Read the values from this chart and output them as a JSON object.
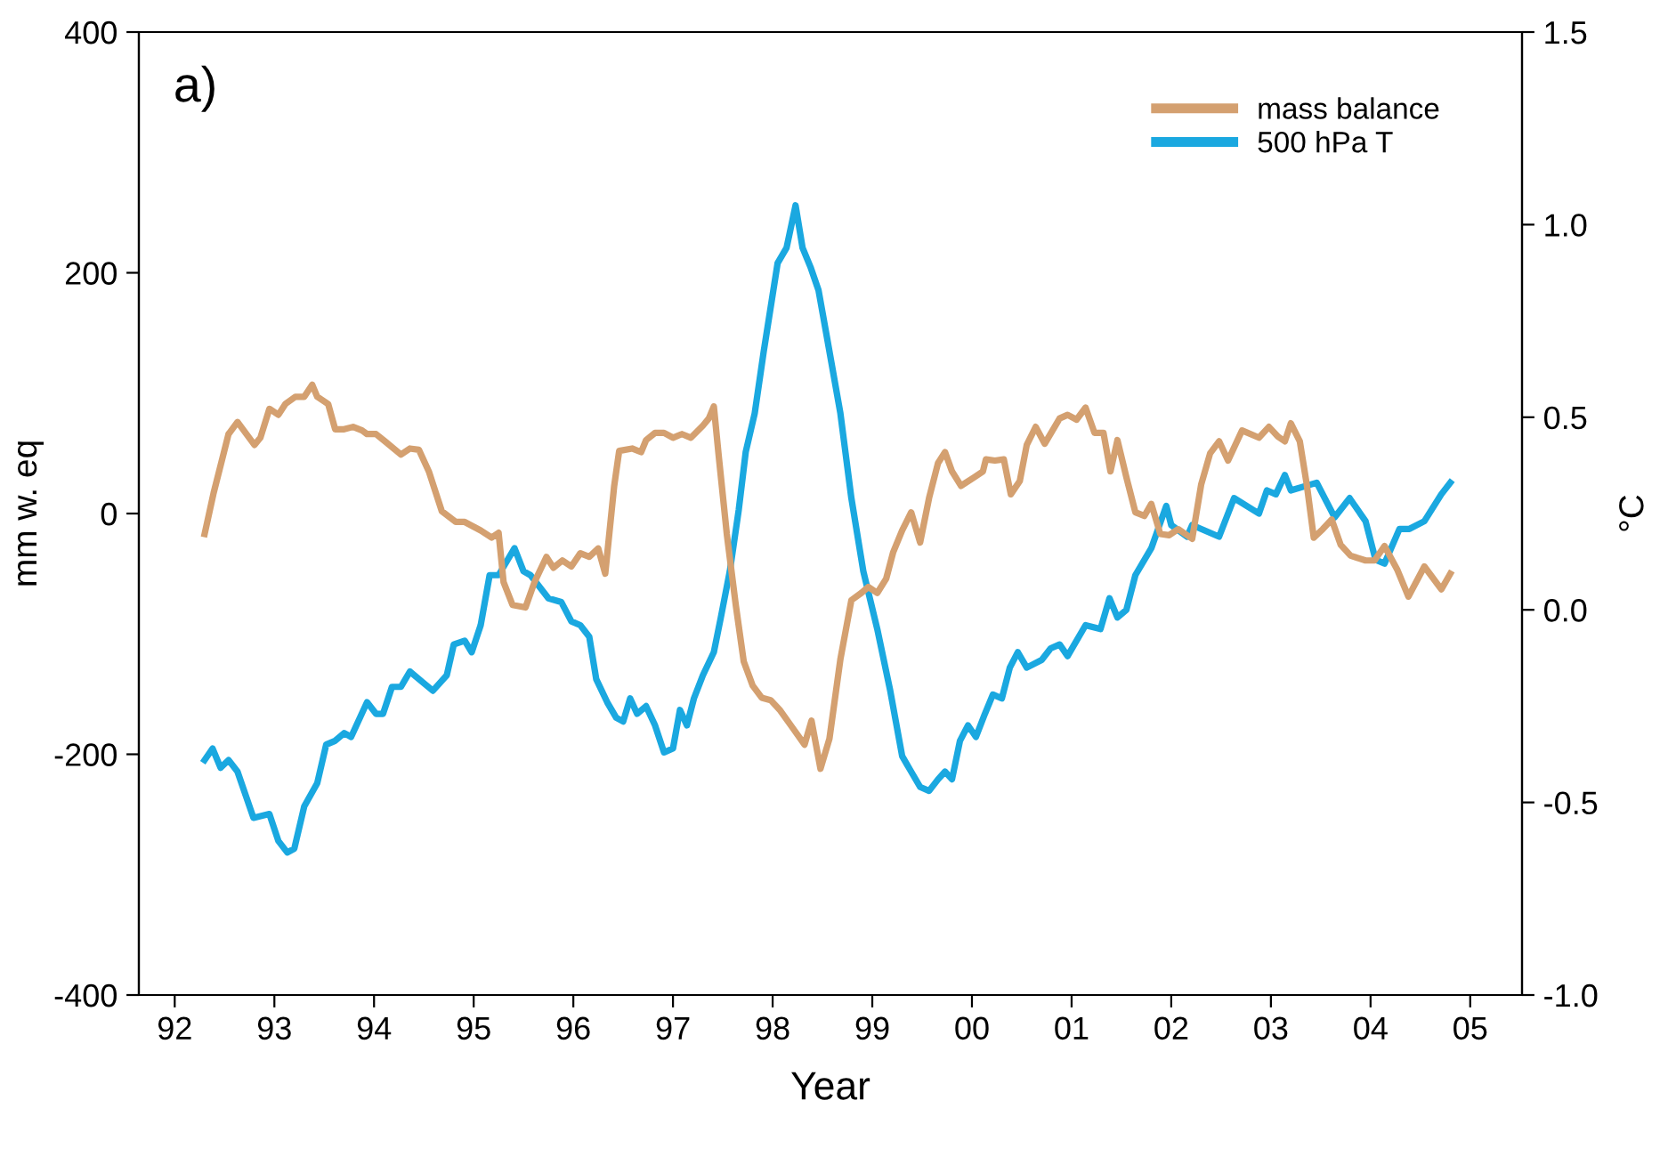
{
  "chart_data": {
    "type": "line",
    "xlabel": "Year",
    "ylabel": "mm w. eq",
    "y2label": "°C",
    "annotations": [
      "a)"
    ],
    "xlim": [
      1991.64,
      2005.52
    ],
    "xticks": [
      {
        "value": 1992,
        "label": "92"
      },
      {
        "value": 1993,
        "label": "93"
      },
      {
        "value": 1994,
        "label": "94"
      },
      {
        "value": 1995,
        "label": "95"
      },
      {
        "value": 1996,
        "label": "96"
      },
      {
        "value": 1997,
        "label": "97"
      },
      {
        "value": 1998,
        "label": "98"
      },
      {
        "value": 1999,
        "label": "99"
      },
      {
        "value": 2000,
        "label": "00"
      },
      {
        "value": 2001,
        "label": "01"
      },
      {
        "value": 2002,
        "label": "02"
      },
      {
        "value": 2003,
        "label": "03"
      },
      {
        "value": 2004,
        "label": "04"
      },
      {
        "value": 2005,
        "label": "05"
      }
    ],
    "ylim": [
      -400,
      400
    ],
    "yticks": [
      -400,
      -200,
      0,
      200,
      400
    ],
    "y2lim": [
      -1.0,
      1.5
    ],
    "y2ticks": [
      {
        "value": -1.0,
        "label": "-1.0"
      },
      {
        "value": -0.5,
        "label": "-0.5"
      },
      {
        "value": 0.0,
        "label": "0.0"
      },
      {
        "value": 0.5,
        "label": "0.5"
      },
      {
        "value": 1.0,
        "label": "1.0"
      },
      {
        "value": 1.5,
        "label": "1.5"
      }
    ],
    "grid": false,
    "legend": "top right",
    "marker": "none",
    "line_style": "solid",
    "series": [
      {
        "name": "mass balance",
        "color": "#d4a070",
        "x": [
          1992.3,
          1992.39,
          1992.54,
          1992.63,
          1992.8,
          1992.86,
          1992.95,
          1993.04,
          1993.11,
          1993.21,
          1993.3,
          1993.38,
          1993.43,
          1993.54,
          1993.61,
          1993.7,
          1993.79,
          1993.88,
          1993.93,
          1994.02,
          1994.11,
          1994.27,
          1994.36,
          1994.45,
          1994.55,
          1994.68,
          1994.82,
          1994.91,
          1995.07,
          1995.18,
          1995.25,
          1995.3,
          1995.39,
          1995.52,
          1995.61,
          1995.73,
          1995.8,
          1995.89,
          1995.98,
          1996.07,
          1996.16,
          1996.25,
          1996.32,
          1996.41,
          1996.46,
          1996.59,
          1996.68,
          1996.73,
          1996.82,
          1996.91,
          1997.0,
          1997.09,
          1997.18,
          1997.3,
          1997.36,
          1997.41,
          1997.46,
          1997.54,
          1997.63,
          1997.71,
          1997.8,
          1997.89,
          1997.98,
          1998.07,
          1998.2,
          1998.32,
          1998.39,
          1998.48,
          1998.57,
          1998.68,
          1998.79,
          1998.89,
          1998.96,
          1999.05,
          1999.14,
          1999.21,
          1999.3,
          1999.39,
          1999.48,
          1999.57,
          1999.66,
          1999.73,
          1999.8,
          1999.89,
          2000.02,
          2000.11,
          2000.14,
          2000.23,
          2000.32,
          2000.39,
          2000.48,
          2000.55,
          2000.64,
          2000.73,
          2000.88,
          2000.96,
          2001.05,
          2001.14,
          2001.23,
          2001.32,
          2001.39,
          2001.46,
          2001.55,
          2001.64,
          2001.73,
          2001.8,
          2001.89,
          2001.98,
          2002.07,
          2002.21,
          2002.3,
          2002.39,
          2002.48,
          2002.57,
          2002.71,
          2002.88,
          2002.98,
          2003.07,
          2003.14,
          2003.2,
          2003.29,
          2003.36,
          2003.43,
          2003.52,
          2003.61,
          2003.7,
          2003.8,
          2003.95,
          2004.04,
          2004.14,
          2004.27,
          2004.38,
          2004.54,
          2004.71,
          2004.8
        ],
        "values": [
          -17,
          17,
          66,
          76,
          57,
          63,
          87,
          82,
          91,
          97,
          97,
          107,
          97,
          91,
          70,
          70,
          72,
          69,
          66,
          66,
          60,
          49,
          54,
          53,
          35,
          2,
          -7,
          -7,
          -14,
          -20,
          -16,
          -57,
          -76,
          -78,
          -57,
          -36,
          -45,
          -39,
          -44,
          -33,
          -36,
          -29,
          -50,
          23,
          52,
          54,
          51,
          61,
          67,
          67,
          63,
          66,
          63,
          73,
          79,
          89,
          47,
          -17,
          -76,
          -123,
          -143,
          -153,
          -155,
          -163,
          -178,
          -192,
          -172,
          -212,
          -187,
          -121,
          -72,
          -66,
          -61,
          -66,
          -54,
          -32,
          -14,
          1,
          -24,
          13,
          42,
          51,
          35,
          23,
          30,
          35,
          45,
          44,
          45,
          16,
          27,
          57,
          72,
          58,
          79,
          82,
          78,
          88,
          67,
          67,
          35,
          61,
          30,
          1,
          -2,
          8,
          -17,
          -18,
          -13,
          -21,
          24,
          50,
          60,
          44,
          69,
          63,
          72,
          64,
          60,
          75,
          60,
          24,
          -20,
          -13,
          -5,
          -26,
          -35,
          -39,
          -39,
          -27,
          -47,
          -69,
          -44,
          -63,
          -50
        ]
      },
      {
        "name": "500 hPa T",
        "color": "#1aa8e0",
        "axis": "y2",
        "x": [
          1992.3,
          1992.38,
          1992.46,
          1992.54,
          1992.63,
          1992.79,
          1992.95,
          1993.04,
          1993.13,
          1993.2,
          1993.3,
          1993.43,
          1993.52,
          1993.61,
          1993.7,
          1993.77,
          1993.93,
          1994.02,
          1994.09,
          1994.18,
          1994.27,
          1994.36,
          1994.45,
          1994.59,
          1994.73,
          1994.8,
          1994.91,
          1994.98,
          1995.07,
          1995.16,
          1995.25,
          1995.41,
          1995.5,
          1995.57,
          1995.75,
          1995.88,
          1995.98,
          1996.07,
          1996.16,
          1996.23,
          1996.34,
          1996.43,
          1996.5,
          1996.57,
          1996.64,
          1996.73,
          1996.82,
          1996.91,
          1997.0,
          1997.07,
          1997.14,
          1997.21,
          1997.3,
          1997.41,
          1997.48,
          1997.57,
          1997.66,
          1997.73,
          1997.82,
          1997.91,
          1998.05,
          1998.14,
          1998.23,
          1998.3,
          1998.38,
          1998.46,
          1998.55,
          1998.68,
          1998.79,
          1998.91,
          1999.05,
          1999.18,
          1999.3,
          1999.39,
          1999.48,
          1999.57,
          1999.66,
          1999.73,
          1999.8,
          1999.88,
          1999.96,
          2000.04,
          2000.13,
          2000.21,
          2000.3,
          2000.38,
          2000.46,
          2000.55,
          2000.7,
          2000.79,
          2000.88,
          2000.96,
          2001.14,
          2001.29,
          2001.38,
          2001.46,
          2001.55,
          2001.64,
          2001.8,
          2001.95,
          2002.0,
          2002.16,
          2002.21,
          2002.48,
          2002.63,
          2002.88,
          2002.96,
          2003.05,
          2003.14,
          2003.2,
          2003.46,
          2003.64,
          2003.79,
          2003.95,
          2004.05,
          2004.14,
          2004.29,
          2004.39,
          2004.54,
          2004.71,
          2004.8
        ],
        "values": [
          -0.39,
          -0.36,
          -0.41,
          -0.39,
          -0.42,
          -0.54,
          -0.53,
          -0.6,
          -0.63,
          -0.62,
          -0.51,
          -0.45,
          -0.35,
          -0.34,
          -0.32,
          -0.33,
          -0.24,
          -0.27,
          -0.27,
          -0.2,
          -0.2,
          -0.16,
          -0.18,
          -0.21,
          -0.17,
          -0.09,
          -0.08,
          -0.11,
          -0.04,
          0.09,
          0.09,
          0.16,
          0.1,
          0.09,
          0.03,
          0.02,
          -0.03,
          -0.04,
          -0.07,
          -0.18,
          -0.24,
          -0.28,
          -0.29,
          -0.23,
          -0.27,
          -0.25,
          -0.3,
          -0.37,
          -0.36,
          -0.26,
          -0.3,
          -0.23,
          -0.17,
          -0.11,
          -0.02,
          0.1,
          0.26,
          0.41,
          0.51,
          0.67,
          0.9,
          0.94,
          1.05,
          0.94,
          0.89,
          0.83,
          0.7,
          0.51,
          0.29,
          0.1,
          -0.05,
          -0.21,
          -0.38,
          -0.42,
          -0.46,
          -0.47,
          -0.44,
          -0.42,
          -0.44,
          -0.34,
          -0.3,
          -0.33,
          -0.27,
          -0.22,
          -0.23,
          -0.15,
          -0.11,
          -0.15,
          -0.13,
          -0.1,
          -0.09,
          -0.12,
          -0.04,
          -0.05,
          0.03,
          -0.02,
          0.0,
          0.09,
          0.16,
          0.27,
          0.22,
          0.19,
          0.22,
          0.19,
          0.29,
          0.25,
          0.31,
          0.3,
          0.35,
          0.31,
          0.33,
          0.24,
          0.29,
          0.23,
          0.13,
          0.12,
          0.21,
          0.21,
          0.23,
          0.3,
          0.33
        ]
      }
    ]
  }
}
